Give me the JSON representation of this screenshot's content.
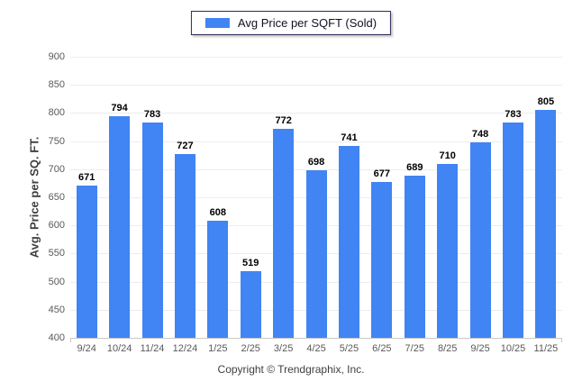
{
  "chart_data": {
    "type": "bar",
    "title": "",
    "legend": [
      "Avg Price per SQFT (Sold)"
    ],
    "legend_position": "top-center",
    "categories": [
      "9/24",
      "10/24",
      "11/24",
      "12/24",
      "1/25",
      "2/25",
      "3/25",
      "4/25",
      "5/25",
      "6/25",
      "7/25",
      "8/25",
      "9/25",
      "10/25",
      "11/25"
    ],
    "values": [
      671,
      794,
      783,
      727,
      608,
      519,
      772,
      698,
      741,
      677,
      689,
      710,
      748,
      783,
      805
    ],
    "xlabel": "",
    "ylabel": "Avg. Price per SQ. FT.",
    "ylim": [
      400,
      900
    ],
    "ytick_step": 50,
    "ytick_labels": [
      "900",
      "850",
      "800",
      "750",
      "700",
      "650",
      "600",
      "550",
      "500",
      "450",
      "400"
    ],
    "grid": "horizontal",
    "bar_color": "#4184F3",
    "grid_color": "#ededed",
    "axis_line_color": "#c9c9c9",
    "tick_label_color": "#595959"
  },
  "footer": {
    "copyright": "Copyright © Trendgraphix, Inc."
  }
}
